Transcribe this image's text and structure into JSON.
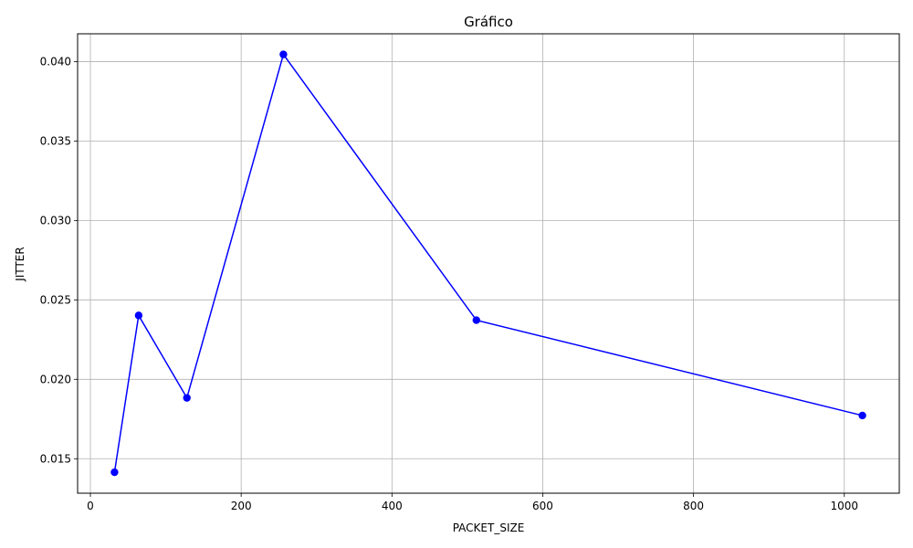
{
  "chart_data": {
    "type": "line",
    "title": "Gráfico",
    "xlabel": "PACKET_SIZE",
    "ylabel": "JITTER",
    "xlim": [
      -16.96,
      1072.96
    ],
    "ylim": [
      0.01283,
      0.04175
    ],
    "x_ticks": [
      0,
      200,
      400,
      600,
      800,
      1000
    ],
    "y_ticks": [
      0.015,
      0.02,
      0.025,
      0.03,
      0.035,
      0.04
    ],
    "x_tick_labels": [
      "0",
      "200",
      "400",
      "600",
      "800",
      "1000"
    ],
    "y_tick_labels": [
      "0.015",
      "0.020",
      "0.025",
      "0.030",
      "0.035",
      "0.040"
    ],
    "grid": true,
    "series": [
      {
        "color": "#0000ff",
        "marker": "circle",
        "x": [
          32,
          64,
          128,
          256,
          512,
          1024
        ],
        "y": [
          0.01415,
          0.02402,
          0.01883,
          0.04045,
          0.02372,
          0.01772
        ]
      }
    ]
  }
}
